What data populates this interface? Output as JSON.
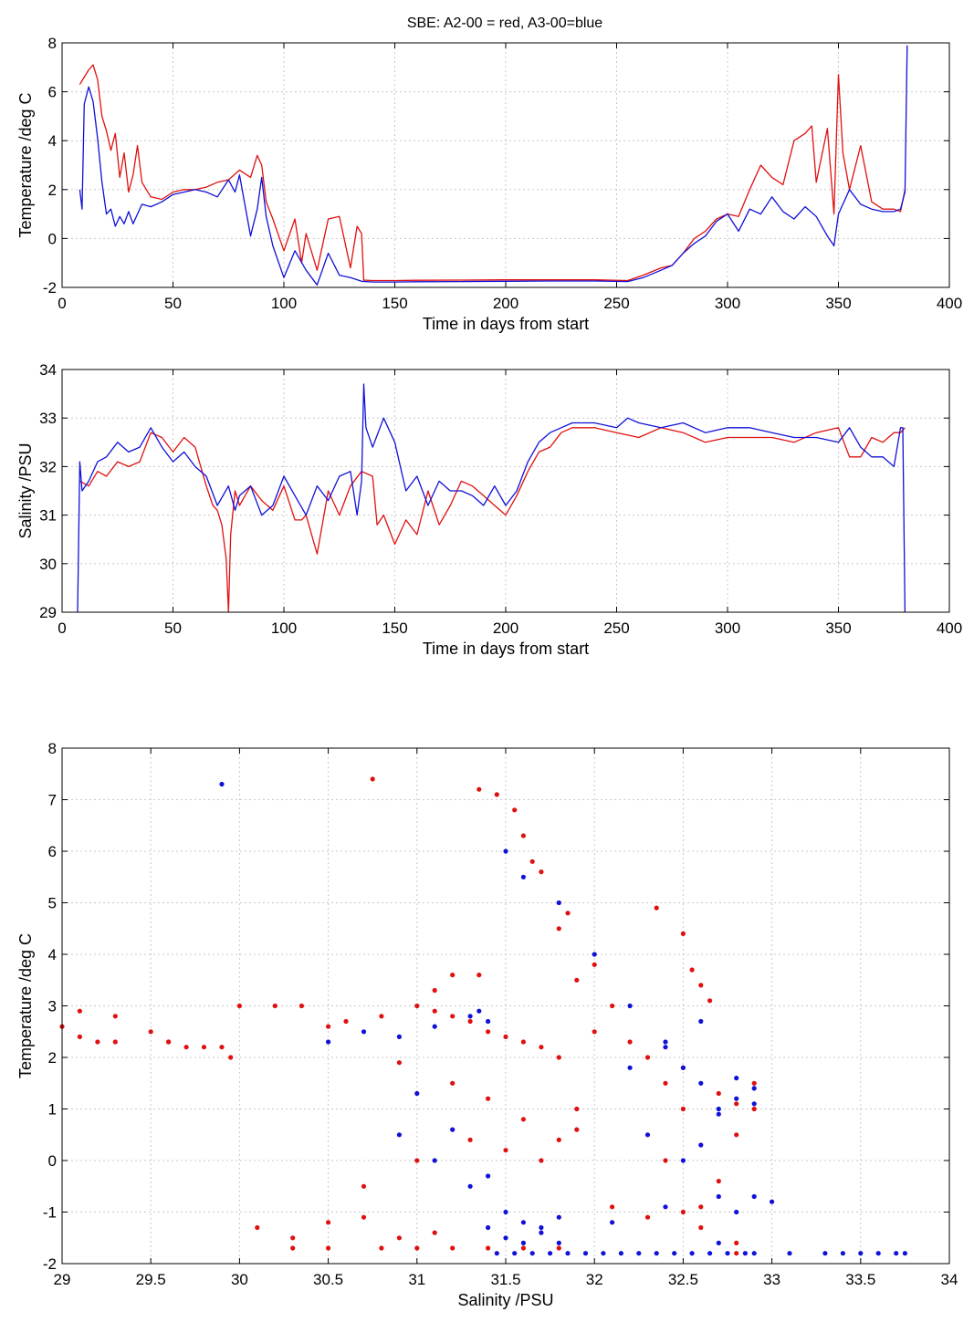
{
  "figure_title": "SBE: A2-00 = red, A3-00=blue",
  "colors": {
    "red": "#e01010",
    "blue": "#1010d8",
    "grid": "#c8c8c8"
  },
  "chart_data": [
    {
      "type": "line",
      "title": "SBE: A2-00 = red, A3-00=blue",
      "xlabel": "Time in days from start",
      "ylabel": "Temperature /deg C",
      "xlim": [
        0,
        400
      ],
      "ylim": [
        -2,
        8
      ],
      "xticks": [
        "0",
        "50",
        "100",
        "150",
        "200",
        "250",
        "300",
        "350",
        "400"
      ],
      "yticks": [
        "-2",
        "0",
        "2",
        "4",
        "6",
        "8"
      ],
      "grid": true,
      "series": [
        {
          "color": "red",
          "x": [
            8,
            10,
            12,
            14,
            16,
            18,
            20,
            22,
            24,
            26,
            28,
            30,
            32,
            34,
            36,
            40,
            45,
            50,
            55,
            60,
            65,
            70,
            75,
            80,
            85,
            88,
            90,
            92,
            95,
            100,
            105,
            108,
            110,
            115,
            120,
            125,
            130,
            133,
            135,
            136,
            140,
            150,
            160,
            180,
            200,
            220,
            240,
            255,
            262,
            270,
            275,
            280,
            285,
            290,
            295,
            300,
            305,
            310,
            315,
            320,
            325,
            330,
            335,
            338,
            340,
            345,
            348,
            350,
            352,
            355,
            360,
            365,
            370,
            375,
            378,
            380
          ],
          "y": [
            6.3,
            6.6,
            6.9,
            7.1,
            6.5,
            5.0,
            4.4,
            3.6,
            4.3,
            2.5,
            3.5,
            1.9,
            2.6,
            3.8,
            2.3,
            1.7,
            1.6,
            1.9,
            2.0,
            2.0,
            2.1,
            2.3,
            2.4,
            2.8,
            2.5,
            3.4,
            3.0,
            1.5,
            0.8,
            -0.5,
            0.8,
            -1.0,
            0.2,
            -1.3,
            0.8,
            0.9,
            -1.2,
            0.5,
            0.2,
            -1.7,
            -1.72,
            -1.72,
            -1.71,
            -1.7,
            -1.69,
            -1.69,
            -1.69,
            -1.72,
            -1.5,
            -1.2,
            -1.1,
            -0.6,
            0.0,
            0.3,
            0.8,
            1.0,
            0.9,
            2.0,
            3.0,
            2.5,
            2.2,
            4.0,
            4.3,
            4.6,
            2.3,
            4.5,
            1.0,
            6.7,
            3.5,
            2.0,
            3.8,
            1.5,
            1.2,
            1.2,
            1.1,
            2.0
          ]
        },
        {
          "color": "blue",
          "x": [
            8,
            9,
            10,
            12,
            14,
            16,
            18,
            20,
            22,
            24,
            26,
            28,
            30,
            32,
            34,
            36,
            40,
            45,
            50,
            55,
            60,
            65,
            70,
            75,
            78,
            80,
            85,
            88,
            90,
            92,
            95,
            100,
            105,
            110,
            115,
            120,
            125,
            130,
            135,
            140,
            150,
            160,
            180,
            200,
            220,
            240,
            255,
            262,
            270,
            275,
            280,
            285,
            290,
            295,
            300,
            305,
            310,
            315,
            320,
            325,
            330,
            335,
            340,
            345,
            348,
            350,
            355,
            360,
            365,
            370,
            375,
            378,
            380,
            381
          ],
          "y": [
            2.0,
            1.2,
            5.5,
            6.2,
            5.6,
            4.1,
            2.3,
            1.0,
            1.2,
            0.5,
            0.9,
            0.6,
            1.1,
            0.6,
            1.0,
            1.4,
            1.3,
            1.5,
            1.8,
            1.9,
            2.0,
            1.9,
            1.7,
            2.4,
            1.9,
            2.6,
            0.1,
            1.2,
            2.5,
            0.9,
            -0.3,
            -1.6,
            -0.5,
            -1.3,
            -1.9,
            -0.6,
            -1.5,
            -1.6,
            -1.75,
            -1.78,
            -1.78,
            -1.77,
            -1.76,
            -1.75,
            -1.74,
            -1.74,
            -1.76,
            -1.6,
            -1.3,
            -1.1,
            -0.6,
            -0.2,
            0.1,
            0.7,
            1.0,
            0.3,
            1.2,
            1.0,
            1.7,
            1.1,
            0.8,
            1.3,
            0.9,
            0.1,
            -0.3,
            1.0,
            2.0,
            1.4,
            1.2,
            1.1,
            1.1,
            1.2,
            1.9,
            7.9
          ]
        }
      ]
    },
    {
      "type": "line",
      "xlabel": "Time in days from start",
      "ylabel": "Salinity /PSU",
      "xlim": [
        0,
        400
      ],
      "ylim": [
        29,
        34
      ],
      "xticks": [
        "0",
        "50",
        "100",
        "150",
        "200",
        "250",
        "300",
        "350",
        "400"
      ],
      "yticks": [
        "29",
        "30",
        "31",
        "32",
        "33",
        "34"
      ],
      "grid": true,
      "series": [
        {
          "color": "red",
          "x": [
            8,
            12,
            16,
            20,
            25,
            30,
            35,
            40,
            45,
            50,
            55,
            60,
            65,
            68,
            70,
            72,
            74,
            75,
            76,
            78,
            80,
            85,
            90,
            95,
            100,
            105,
            108,
            110,
            115,
            120,
            125,
            130,
            135,
            140,
            142,
            145,
            150,
            155,
            160,
            165,
            170,
            175,
            180,
            185,
            190,
            195,
            200,
            205,
            210,
            215,
            220,
            225,
            230,
            240,
            250,
            260,
            270,
            280,
            290,
            300,
            310,
            320,
            330,
            340,
            350,
            355,
            360,
            365,
            370,
            375,
            378,
            380
          ],
          "y": [
            31.7,
            31.6,
            31.9,
            31.8,
            32.1,
            32.0,
            32.1,
            32.7,
            32.6,
            32.3,
            32.6,
            32.4,
            31.6,
            31.2,
            31.1,
            30.8,
            30.1,
            29.0,
            30.6,
            31.5,
            31.2,
            31.6,
            31.3,
            31.1,
            31.6,
            30.9,
            30.9,
            31.0,
            30.2,
            31.5,
            31.0,
            31.6,
            31.9,
            31.8,
            30.8,
            31.0,
            30.4,
            30.9,
            30.6,
            31.5,
            30.8,
            31.2,
            31.7,
            31.6,
            31.4,
            31.2,
            31.0,
            31.4,
            31.9,
            32.3,
            32.4,
            32.7,
            32.8,
            32.8,
            32.7,
            32.6,
            32.8,
            32.7,
            32.5,
            32.6,
            32.6,
            32.6,
            32.5,
            32.7,
            32.8,
            32.2,
            32.2,
            32.6,
            32.5,
            32.7,
            32.7,
            32.8
          ]
        },
        {
          "color": "blue",
          "x": [
            7,
            8,
            9,
            12,
            16,
            20,
            25,
            30,
            35,
            40,
            45,
            50,
            55,
            60,
            65,
            70,
            75,
            78,
            80,
            85,
            90,
            95,
            100,
            105,
            110,
            115,
            120,
            125,
            130,
            133,
            135,
            136,
            137,
            140,
            145,
            150,
            155,
            160,
            165,
            170,
            175,
            180,
            185,
            190,
            195,
            200,
            205,
            210,
            215,
            220,
            225,
            230,
            240,
            250,
            255,
            260,
            270,
            280,
            290,
            300,
            310,
            320,
            330,
            340,
            350,
            355,
            360,
            365,
            370,
            375,
            378,
            379,
            380
          ],
          "y": [
            29.0,
            32.1,
            31.5,
            31.7,
            32.1,
            32.2,
            32.5,
            32.3,
            32.4,
            32.8,
            32.4,
            32.1,
            32.3,
            32.0,
            31.8,
            31.2,
            31.6,
            31.1,
            31.4,
            31.6,
            31.0,
            31.2,
            31.8,
            31.4,
            31.0,
            31.6,
            31.3,
            31.8,
            31.9,
            31.0,
            31.7,
            33.7,
            32.8,
            32.4,
            33.0,
            32.5,
            31.5,
            31.8,
            31.2,
            31.7,
            31.5,
            31.5,
            31.4,
            31.2,
            31.6,
            31.2,
            31.5,
            32.1,
            32.5,
            32.7,
            32.8,
            32.9,
            32.9,
            32.8,
            33.0,
            32.9,
            32.8,
            32.9,
            32.7,
            32.8,
            32.8,
            32.7,
            32.6,
            32.6,
            32.5,
            32.8,
            32.4,
            32.2,
            32.2,
            32.0,
            32.8,
            32.8,
            29.0
          ]
        }
      ]
    },
    {
      "type": "scatter",
      "xlabel": "Salinity /PSU",
      "ylabel": "Temperature /deg C",
      "xlim": [
        29,
        34
      ],
      "ylim": [
        -2,
        8
      ],
      "xticks": [
        "29",
        "29.5",
        "30",
        "30.5",
        "31",
        "31.5",
        "32",
        "32.5",
        "33",
        "33.5",
        "34"
      ],
      "yticks": [
        "-2",
        "-1",
        "0",
        "1",
        "2",
        "3",
        "4",
        "5",
        "6",
        "7",
        "8"
      ],
      "grid": true,
      "series": [
        {
          "color": "red",
          "x": [
            29.0,
            29.1,
            29.2,
            29.3,
            29.1,
            29.3,
            29.5,
            29.6,
            29.7,
            29.9,
            30.0,
            30.2,
            29.6,
            29.8,
            29.95,
            30.35,
            30.5,
            30.6,
            30.8,
            30.75,
            31.0,
            31.1,
            31.2,
            31.3,
            31.4,
            31.1,
            31.2,
            31.35,
            31.5,
            31.6,
            31.7,
            31.8,
            30.9,
            31.2,
            31.4,
            31.6,
            31.8,
            31.9,
            30.7,
            31.0,
            31.3,
            31.5,
            31.7,
            31.9,
            30.1,
            30.3,
            30.5,
            30.7,
            30.9,
            31.1,
            30.3,
            30.5,
            30.8,
            31.0,
            31.2,
            31.4,
            31.6,
            31.8,
            31.35,
            31.45,
            31.55,
            31.6,
            31.7,
            31.8,
            31.9,
            32.0,
            31.65,
            31.85,
            32.0,
            32.1,
            32.2,
            32.3,
            32.4,
            32.5,
            32.35,
            32.5,
            32.55,
            32.6,
            32.65,
            32.1,
            32.3,
            32.5,
            32.6,
            32.7,
            32.8,
            32.9,
            32.4,
            32.6,
            32.8,
            32.5,
            32.7,
            32.8,
            32.9,
            32.8
          ],
          "y": [
            2.6,
            2.4,
            2.3,
            2.3,
            2.9,
            2.8,
            2.5,
            2.3,
            2.2,
            2.2,
            3.0,
            3.0,
            2.3,
            2.2,
            2.0,
            3.0,
            2.6,
            2.7,
            2.8,
            7.4,
            3.0,
            2.9,
            2.8,
            2.7,
            2.5,
            3.3,
            3.6,
            3.6,
            2.4,
            2.3,
            2.2,
            2.0,
            1.9,
            1.5,
            1.2,
            0.8,
            0.4,
            0.6,
            -0.5,
            0.0,
            0.4,
            0.2,
            0.0,
            1.0,
            -1.3,
            -1.5,
            -1.2,
            -1.1,
            -1.5,
            -1.4,
            -1.7,
            -1.7,
            -1.7,
            -1.7,
            -1.7,
            -1.7,
            -1.7,
            -1.7,
            7.2,
            7.1,
            6.8,
            6.3,
            5.6,
            4.5,
            3.5,
            2.5,
            5.8,
            4.8,
            3.8,
            3.0,
            2.3,
            2.0,
            1.5,
            1.0,
            4.9,
            4.4,
            3.7,
            3.4,
            3.1,
            -0.9,
            -1.1,
            -1.0,
            -0.9,
            -0.4,
            0.5,
            1.0,
            0.0,
            -1.3,
            -1.6,
            1.8,
            1.3,
            1.1,
            1.5,
            -1.8
          ]
        },
        {
          "color": "blue",
          "x": [
            29.9,
            30.5,
            30.7,
            30.9,
            31.1,
            31.3,
            31.35,
            31.4,
            30.9,
            31.1,
            31.3,
            31.5,
            31.7,
            31.0,
            31.2,
            31.4,
            31.6,
            31.8,
            31.4,
            31.5,
            31.6,
            31.7,
            31.5,
            31.6,
            31.8,
            32.0,
            32.2,
            31.45,
            31.55,
            31.65,
            31.75,
            31.85,
            31.95,
            32.05,
            32.15,
            32.25,
            32.35,
            32.45,
            32.55,
            32.65,
            32.75,
            32.85,
            32.9,
            32.2,
            32.4,
            32.6,
            32.8,
            32.3,
            32.5,
            32.7,
            32.9,
            32.6,
            32.7,
            32.8,
            32.9,
            31.8,
            32.1,
            32.4,
            32.7,
            33.0,
            33.1,
            33.3,
            33.4,
            33.5,
            33.6,
            33.7,
            33.75,
            32.7,
            32.8,
            32.9,
            32.4,
            32.5,
            32.6
          ],
          "y": [
            7.3,
            2.3,
            2.5,
            2.4,
            2.6,
            2.8,
            2.9,
            2.7,
            0.5,
            0.0,
            -0.5,
            -1.0,
            -1.3,
            1.3,
            0.6,
            -0.3,
            -1.2,
            -1.6,
            -1.3,
            -1.5,
            -1.6,
            -1.4,
            6.0,
            5.5,
            5.0,
            4.0,
            3.0,
            -1.8,
            -1.8,
            -1.8,
            -1.8,
            -1.8,
            -1.8,
            -1.8,
            -1.8,
            -1.8,
            -1.8,
            -1.8,
            -1.8,
            -1.8,
            -1.8,
            -1.8,
            -1.8,
            1.8,
            2.3,
            1.5,
            1.2,
            0.5,
            0.0,
            1.0,
            1.4,
            2.7,
            0.9,
            1.6,
            1.1,
            -1.1,
            -1.2,
            -0.9,
            -0.7,
            -0.8,
            -1.8,
            -1.8,
            -1.8,
            -1.8,
            -1.8,
            -1.8,
            -1.8,
            -1.6,
            -1.0,
            -0.7,
            2.2,
            1.8,
            0.3
          ]
        }
      ]
    }
  ]
}
